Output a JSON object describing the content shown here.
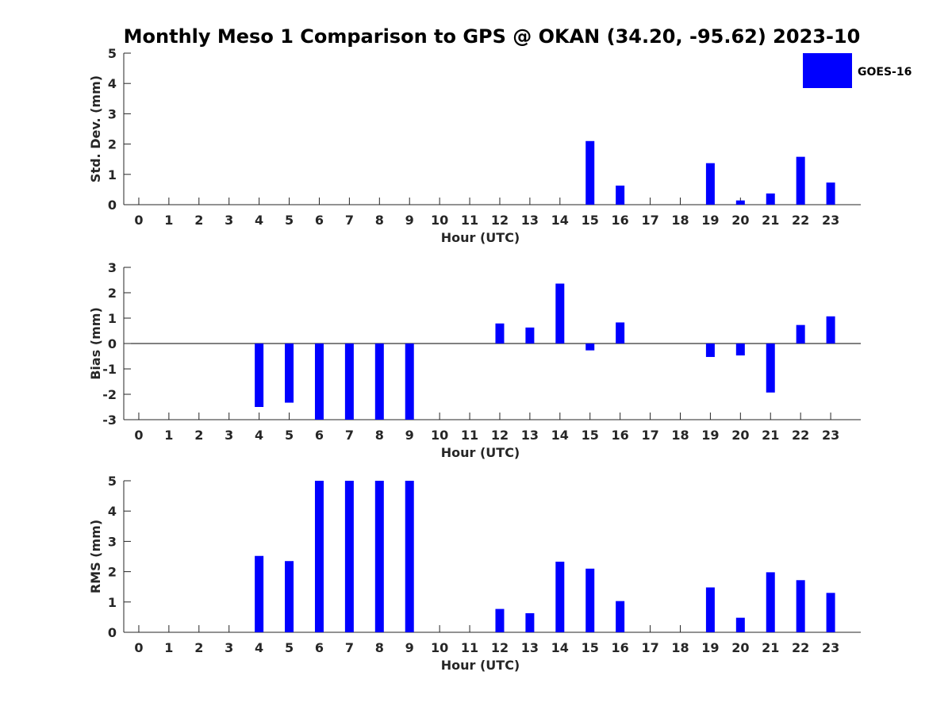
{
  "title": "Monthly Meso 1 Comparison to GPS @ OKAN (34.20, -95.62) 2023-10",
  "legend": {
    "label": "GOES-16",
    "color": "#0000ff"
  },
  "colors": {
    "bar": "#0000ff",
    "axis": "#262626",
    "title": "#000000"
  },
  "chart_data": [
    {
      "type": "bar",
      "name": "std-dev",
      "xlabel": "Hour (UTC)",
      "ylabel": "Std. Dev. (mm)",
      "ylim": [
        0,
        5
      ],
      "yticks": [
        0,
        1,
        2,
        3,
        4,
        5
      ],
      "ytick_labels": [
        "0",
        "1",
        "2",
        "3",
        "4",
        "5"
      ],
      "categories": [
        "0",
        "1",
        "2",
        "3",
        "4",
        "5",
        "6",
        "7",
        "8",
        "9",
        "10",
        "11",
        "12",
        "13",
        "14",
        "15",
        "16",
        "17",
        "18",
        "19",
        "20",
        "21",
        "22",
        "23"
      ],
      "series": [
        {
          "name": "GOES-16",
          "values": [
            0,
            0,
            0,
            0,
            0,
            0,
            0,
            0,
            0,
            0,
            0,
            0,
            0,
            0,
            0,
            2.1,
            0.63,
            0,
            0,
            1.37,
            0.14,
            0.37,
            1.58,
            0.73
          ]
        }
      ]
    },
    {
      "type": "bar",
      "name": "bias",
      "xlabel": "Hour (UTC)",
      "ylabel": "Bias (mm)",
      "ylim": [
        -3,
        3
      ],
      "yticks": [
        -3,
        -2,
        -1,
        0,
        1,
        2,
        3
      ],
      "ytick_labels": [
        "-3",
        "-2",
        "-1",
        "0",
        "1",
        "2",
        "3"
      ],
      "zero_line": true,
      "categories": [
        "0",
        "1",
        "2",
        "3",
        "4",
        "5",
        "6",
        "7",
        "8",
        "9",
        "10",
        "11",
        "12",
        "13",
        "14",
        "15",
        "16",
        "17",
        "18",
        "19",
        "20",
        "21",
        "22",
        "23"
      ],
      "series": [
        {
          "name": "GOES-16",
          "values": [
            0,
            0,
            0,
            0,
            -2.5,
            -2.33,
            -3,
            -3,
            -3,
            -3,
            0,
            0,
            0.79,
            0.63,
            2.36,
            -0.27,
            0.83,
            0,
            0,
            -0.53,
            -0.47,
            -1.93,
            0.73,
            1.07
          ]
        }
      ]
    },
    {
      "type": "bar",
      "name": "rms",
      "xlabel": "Hour (UTC)",
      "ylabel": "RMS (mm)",
      "ylim": [
        0,
        5
      ],
      "yticks": [
        0,
        1,
        2,
        3,
        4,
        5
      ],
      "ytick_labels": [
        "0",
        "1",
        "2",
        "3",
        "4",
        "5"
      ],
      "categories": [
        "0",
        "1",
        "2",
        "3",
        "4",
        "5",
        "6",
        "7",
        "8",
        "9",
        "10",
        "11",
        "12",
        "13",
        "14",
        "15",
        "16",
        "17",
        "18",
        "19",
        "20",
        "21",
        "22",
        "23"
      ],
      "series": [
        {
          "name": "GOES-16",
          "values": [
            0,
            0,
            0,
            0,
            2.52,
            2.35,
            5,
            5,
            5,
            5,
            0,
            0,
            0.77,
            0.63,
            2.33,
            2.1,
            1.03,
            0,
            0,
            1.48,
            0.48,
            1.98,
            1.72,
            1.3
          ]
        }
      ]
    }
  ]
}
